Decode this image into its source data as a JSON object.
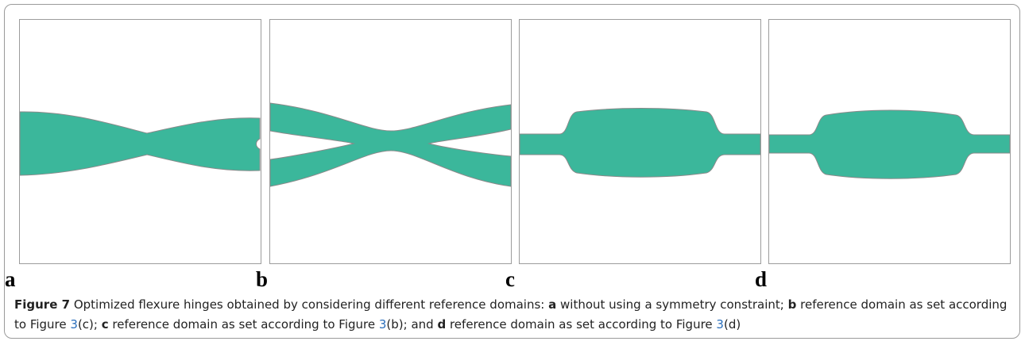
{
  "panels": [
    {
      "label": "a"
    },
    {
      "label": "b"
    },
    {
      "label": "c"
    },
    {
      "label": "d"
    }
  ],
  "caption": {
    "runs": [
      {
        "text": "Figure 7",
        "style": "bold"
      },
      {
        "text": " Optimized flexure hinges obtained by considering different reference domains: ",
        "style": "normal"
      },
      {
        "text": "a",
        "style": "bold"
      },
      {
        "text": " without using a symmetry constraint; ",
        "style": "normal"
      },
      {
        "text": "b",
        "style": "bold"
      },
      {
        "text": " reference domain as set according to Figure ",
        "style": "normal"
      },
      {
        "text": "3",
        "style": "link"
      },
      {
        "text": "(c); ",
        "style": "normal"
      },
      {
        "text": "c",
        "style": "bold"
      },
      {
        "text": " reference domain as set according to Figure ",
        "style": "normal"
      },
      {
        "text": "3",
        "style": "link"
      },
      {
        "text": "(b); and ",
        "style": "normal"
      },
      {
        "text": "d",
        "style": "bold"
      },
      {
        "text": " reference domain as set according to Figure ",
        "style": "normal"
      },
      {
        "text": "3",
        "style": "link"
      },
      {
        "text": "(d)",
        "style": "normal"
      }
    ]
  }
}
